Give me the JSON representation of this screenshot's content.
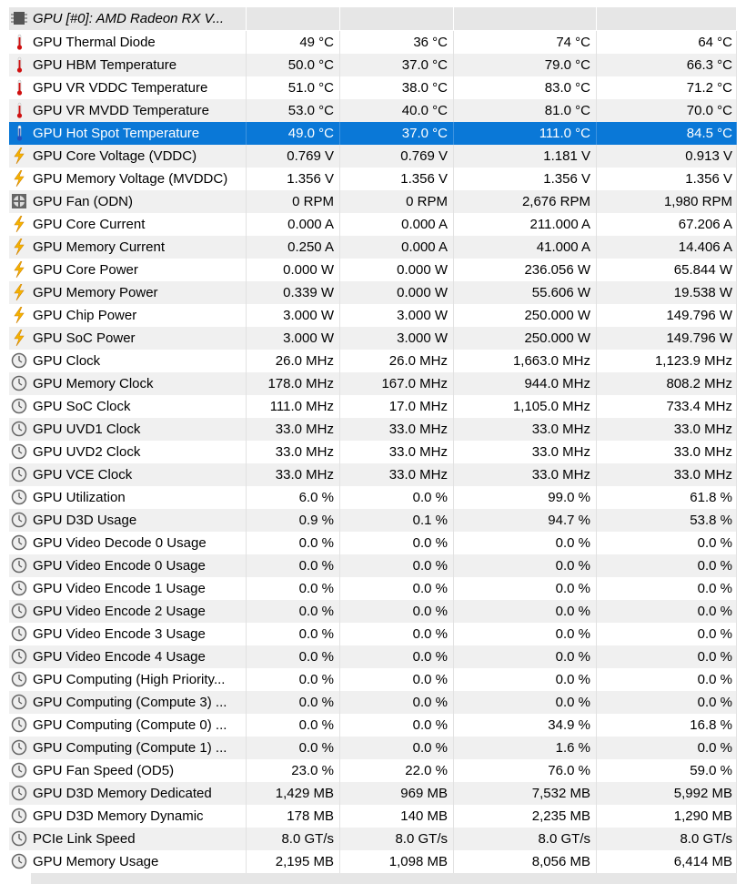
{
  "header": {
    "title": "GPU [#0]: AMD Radeon RX V..."
  },
  "table": {
    "rows": [
      [
        "GPU Thermal Diode",
        "49 °C",
        "36 °C",
        "74 °C",
        "64 °C"
      ],
      [
        "GPU HBM Temperature",
        "50.0 °C",
        "37.0 °C",
        "79.0 °C",
        "66.3 °C"
      ],
      [
        "GPU VR VDDC Temperature",
        "51.0 °C",
        "38.0 °C",
        "83.0 °C",
        "71.2 °C"
      ],
      [
        "GPU VR MVDD Temperature",
        "53.0 °C",
        "40.0 °C",
        "81.0 °C",
        "70.0 °C"
      ],
      [
        "GPU Hot Spot Temperature",
        "49.0 °C",
        "37.0 °C",
        "111.0 °C",
        "84.5 °C"
      ],
      [
        "GPU Core Voltage (VDDC)",
        "0.769 V",
        "0.769 V",
        "1.181 V",
        "0.913 V"
      ],
      [
        "GPU Memory Voltage (MVDDC)",
        "1.356 V",
        "1.356 V",
        "1.356 V",
        "1.356 V"
      ],
      [
        "GPU Fan (ODN)",
        "0 RPM",
        "0 RPM",
        "2,676 RPM",
        "1,980 RPM"
      ],
      [
        "GPU Core Current",
        "0.000 A",
        "0.000 A",
        "211.000 A",
        "67.206 A"
      ],
      [
        "GPU Memory Current",
        "0.250 A",
        "0.000 A",
        "41.000 A",
        "14.406 A"
      ],
      [
        "GPU Core Power",
        "0.000 W",
        "0.000 W",
        "236.056 W",
        "65.844 W"
      ],
      [
        "GPU Memory Power",
        "0.339 W",
        "0.000 W",
        "55.606 W",
        "19.538 W"
      ],
      [
        "GPU Chip Power",
        "3.000 W",
        "3.000 W",
        "250.000 W",
        "149.796 W"
      ],
      [
        "GPU SoC Power",
        "3.000 W",
        "3.000 W",
        "250.000 W",
        "149.796 W"
      ],
      [
        "GPU Clock",
        "26.0 MHz",
        "26.0 MHz",
        "1,663.0 MHz",
        "1,123.9 MHz"
      ],
      [
        "GPU Memory Clock",
        "178.0 MHz",
        "167.0 MHz",
        "944.0 MHz",
        "808.2 MHz"
      ],
      [
        "GPU SoC Clock",
        "111.0 MHz",
        "17.0 MHz",
        "1,105.0 MHz",
        "733.4 MHz"
      ],
      [
        "GPU UVD1 Clock",
        "33.0 MHz",
        "33.0 MHz",
        "33.0 MHz",
        "33.0 MHz"
      ],
      [
        "GPU UVD2 Clock",
        "33.0 MHz",
        "33.0 MHz",
        "33.0 MHz",
        "33.0 MHz"
      ],
      [
        "GPU VCE Clock",
        "33.0 MHz",
        "33.0 MHz",
        "33.0 MHz",
        "33.0 MHz"
      ],
      [
        "GPU Utilization",
        "6.0 %",
        "0.0 %",
        "99.0 %",
        "61.8 %"
      ],
      [
        "GPU D3D Usage",
        "0.9 %",
        "0.1 %",
        "94.7 %",
        "53.8 %"
      ],
      [
        "GPU Video Decode 0 Usage",
        "0.0 %",
        "0.0 %",
        "0.0 %",
        "0.0 %"
      ],
      [
        "GPU Video Encode 0 Usage",
        "0.0 %",
        "0.0 %",
        "0.0 %",
        "0.0 %"
      ],
      [
        "GPU Video Encode 1 Usage",
        "0.0 %",
        "0.0 %",
        "0.0 %",
        "0.0 %"
      ],
      [
        "GPU Video Encode 2 Usage",
        "0.0 %",
        "0.0 %",
        "0.0 %",
        "0.0 %"
      ],
      [
        "GPU Video Encode 3 Usage",
        "0.0 %",
        "0.0 %",
        "0.0 %",
        "0.0 %"
      ],
      [
        "GPU Video Encode 4 Usage",
        "0.0 %",
        "0.0 %",
        "0.0 %",
        "0.0 %"
      ],
      [
        "GPU Computing (High Priority...",
        "0.0 %",
        "0.0 %",
        "0.0 %",
        "0.0 %"
      ],
      [
        "GPU Computing (Compute 3) ...",
        "0.0 %",
        "0.0 %",
        "0.0 %",
        "0.0 %"
      ],
      [
        "GPU Computing (Compute 0) ...",
        "0.0 %",
        "0.0 %",
        "34.9 %",
        "16.8 %"
      ],
      [
        "GPU Computing (Compute 1) ...",
        "0.0 %",
        "0.0 %",
        "1.6 %",
        "0.0 %"
      ],
      [
        "GPU Fan Speed (OD5)",
        "23.0 %",
        "22.0 %",
        "76.0 %",
        "59.0 %"
      ],
      [
        "GPU D3D Memory Dedicated",
        "1,429 MB",
        "969 MB",
        "7,532 MB",
        "5,992 MB"
      ],
      [
        "GPU D3D Memory Dynamic",
        "178 MB",
        "140 MB",
        "2,235 MB",
        "1,290 MB"
      ],
      [
        "PCIe Link Speed",
        "8.0 GT/s",
        "8.0 GT/s",
        "8.0 GT/s",
        "8.0 GT/s"
      ],
      [
        "GPU Memory Usage",
        "2,195 MB",
        "1,098 MB",
        "8,056 MB",
        "6,414 MB"
      ]
    ]
  }
}
